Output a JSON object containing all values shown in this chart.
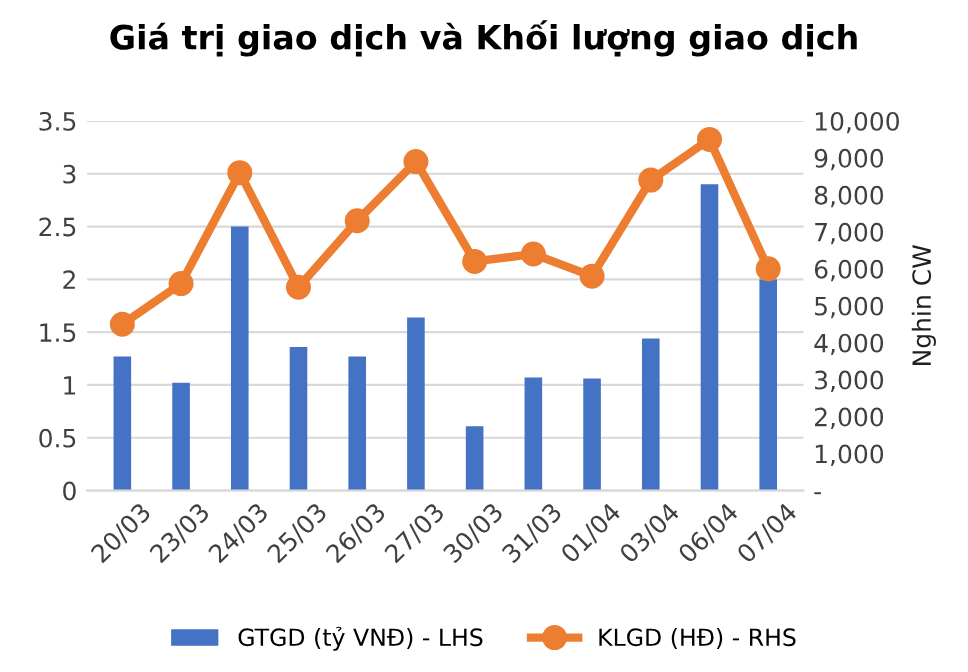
{
  "chart_data": {
    "type": "bar",
    "title": "Giá trị giao dịch và Khối lượng giao dịch",
    "categories": [
      "20/03",
      "23/03",
      "24/03",
      "25/03",
      "26/03",
      "27/03",
      "30/03",
      "31/03",
      "01/04",
      "03/04",
      "06/04",
      "07/04"
    ],
    "series": [
      {
        "name": "GTGD (tỷ VNĐ) - LHS",
        "color": "#4472c4",
        "values": [
          1.27,
          1.02,
          2.5,
          1.36,
          1.27,
          1.64,
          0.61,
          1.07,
          1.06,
          1.44,
          2.9,
          2.0
        ]
      },
      {
        "name": "KLGD (HĐ) - RHS",
        "type": "line",
        "axis": "y2",
        "color": "#ed7d31",
        "marker": "circle",
        "values": [
          4500,
          5600,
          8600,
          5500,
          7300,
          8900,
          6200,
          6400,
          5800,
          8400,
          9500,
          6000
        ]
      }
    ],
    "ylim": [
      0,
      3.5
    ],
    "yticks": [
      0,
      0.5,
      1,
      1.5,
      2,
      2.5,
      3,
      3.5
    ],
    "y2lim": [
      0,
      10000
    ],
    "y2ticks": [
      {
        "value": 0,
        "label": "-"
      },
      {
        "value": 1000,
        "label": "1,000"
      },
      {
        "value": 2000,
        "label": "2,000"
      },
      {
        "value": 3000,
        "label": "3,000"
      },
      {
        "value": 4000,
        "label": "4,000"
      },
      {
        "value": 5000,
        "label": "5,000"
      },
      {
        "value": 6000,
        "label": "6,000"
      },
      {
        "value": 7000,
        "label": "7,000"
      },
      {
        "value": 8000,
        "label": "8,000"
      },
      {
        "value": 9000,
        "label": "9,000"
      },
      {
        "value": 10000,
        "label": "10,000"
      }
    ],
    "y2label": "Nghin CW",
    "grid": "y",
    "legend": "bottom"
  }
}
